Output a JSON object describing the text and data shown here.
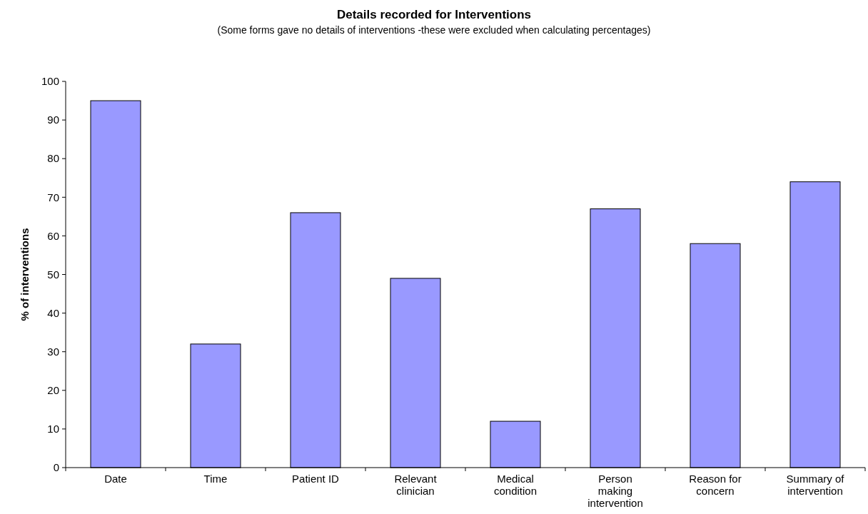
{
  "chart_data": {
    "type": "bar",
    "title": "Details recorded for Interventions",
    "subtitle": "(Some forms gave no details of interventions -these were excluded when calculating percentages)",
    "ylabel": "% of interventions",
    "categories": [
      "Date",
      "Time",
      "Patient ID",
      "Relevant clinician",
      "Medical condition",
      "Person making intervention",
      "Reason for concern",
      "Summary of intervention"
    ],
    "values": [
      95,
      32,
      66,
      49,
      12,
      67,
      58,
      74
    ],
    "color": "#9999ff",
    "ylim": [
      0,
      100
    ],
    "yticks": [
      0,
      10,
      20,
      30,
      40,
      50,
      60,
      70,
      80,
      90,
      100
    ],
    "grid": false
  }
}
